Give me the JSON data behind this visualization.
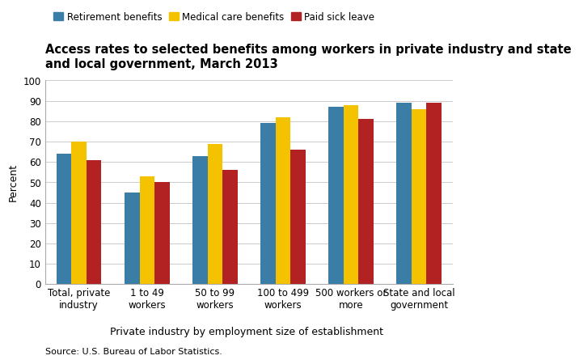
{
  "title": "Access rates to selected benefits among workers in private industry and state\nand local government, March 2013",
  "categories": [
    "Total, private\nindustry",
    "1 to 49\nworkers",
    "50 to 99\nworkers",
    "100 to 499\nworkers",
    "500 workers or\nmore",
    "State and local\ngovernment"
  ],
  "series": [
    {
      "name": "Retirement benefits",
      "color": "#3a7ea8",
      "values": [
        64,
        45,
        63,
        79,
        87,
        89
      ]
    },
    {
      "name": "Medical care benefits",
      "color": "#f5c200",
      "values": [
        70,
        53,
        69,
        82,
        88,
        86
      ]
    },
    {
      "name": "Paid sick leave",
      "color": "#b22222",
      "values": [
        61,
        50,
        56,
        66,
        81,
        89
      ]
    }
  ],
  "ylabel": "Percent",
  "xlabel": "Private industry by employment size of establishment",
  "ylim": [
    0,
    100
  ],
  "yticks": [
    0,
    10,
    20,
    30,
    40,
    50,
    60,
    70,
    80,
    90,
    100
  ],
  "source": "Source: U.S. Bureau of Labor Statistics.",
  "title_fontsize": 10.5,
  "axis_fontsize": 9,
  "tick_fontsize": 8.5,
  "legend_fontsize": 8.5,
  "bar_width": 0.22,
  "background_color": "#ffffff"
}
